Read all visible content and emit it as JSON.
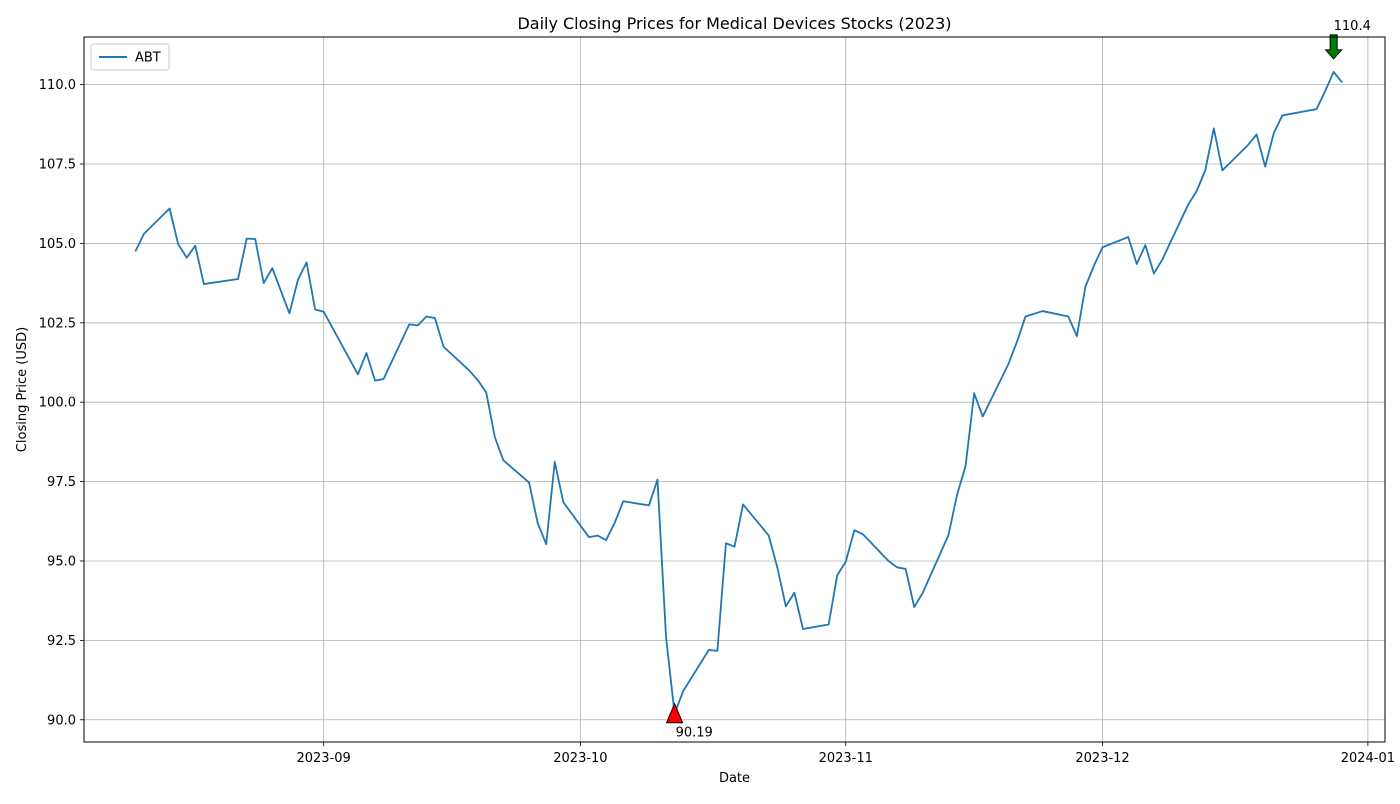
{
  "chart_data": {
    "type": "line",
    "title": "Daily Closing Prices for Medical Devices Stocks (2023)",
    "xlabel": "Date",
    "ylabel": "Closing Price (USD)",
    "xlim": [
      "2023-08-04",
      "2024-01-03"
    ],
    "ylim": [
      89.3,
      111.5
    ],
    "xticks": [
      "2023-09-01",
      "2023-10-01",
      "2023-11-01",
      "2023-12-01",
      "2024-01-01"
    ],
    "xtick_labels": [
      "2023-09",
      "2023-10",
      "2023-11",
      "2023-12",
      "2024-01"
    ],
    "yticks": [
      90.0,
      92.5,
      95.0,
      97.5,
      100.0,
      102.5,
      105.0,
      107.5,
      110.0
    ],
    "ytick_labels": [
      "90.0",
      "92.5",
      "95.0",
      "97.5",
      "100.0",
      "102.5",
      "105.0",
      "107.5",
      "110.0"
    ],
    "grid": true,
    "legend": "top-left",
    "line_color": "#1f77b4",
    "series": [
      {
        "name": "ABT",
        "x": [
          "2023-08-10",
          "2023-08-11",
          "2023-08-14",
          "2023-08-15",
          "2023-08-16",
          "2023-08-17",
          "2023-08-18",
          "2023-08-22",
          "2023-08-23",
          "2023-08-24",
          "2023-08-25",
          "2023-08-26",
          "2023-08-28",
          "2023-08-29",
          "2023-08-30",
          "2023-08-31",
          "2023-09-01",
          "2023-09-05",
          "2023-09-06",
          "2023-09-07",
          "2023-09-08",
          "2023-09-11",
          "2023-09-12",
          "2023-09-13",
          "2023-09-14",
          "2023-09-15",
          "2023-09-18",
          "2023-09-19",
          "2023-09-20",
          "2023-09-21",
          "2023-09-22",
          "2023-09-25",
          "2023-09-26",
          "2023-09-27",
          "2023-09-28",
          "2023-09-29",
          "2023-10-02",
          "2023-10-03",
          "2023-10-04",
          "2023-10-05",
          "2023-10-06",
          "2023-10-09",
          "2023-10-10",
          "2023-10-11",
          "2023-10-12",
          "2023-10-13",
          "2023-10-16",
          "2023-10-17",
          "2023-10-18",
          "2023-10-19",
          "2023-10-20",
          "2023-10-23",
          "2023-10-24",
          "2023-10-25",
          "2023-10-26",
          "2023-10-27",
          "2023-10-30",
          "2023-10-31",
          "2023-11-01",
          "2023-11-02",
          "2023-11-03",
          "2023-11-06",
          "2023-11-07",
          "2023-11-08",
          "2023-11-09",
          "2023-11-10",
          "2023-11-13",
          "2023-11-14",
          "2023-11-15",
          "2023-11-16",
          "2023-11-17",
          "2023-11-20",
          "2023-11-21",
          "2023-11-22",
          "2023-11-24",
          "2023-11-27",
          "2023-11-28",
          "2023-11-29",
          "2023-11-30",
          "2023-12-01",
          "2023-12-04",
          "2023-12-05",
          "2023-12-06",
          "2023-12-07",
          "2023-12-08",
          "2023-12-11",
          "2023-12-12",
          "2023-12-13",
          "2023-12-14",
          "2023-12-15",
          "2023-12-18",
          "2023-12-19",
          "2023-12-20",
          "2023-12-21",
          "2023-12-22",
          "2023-12-26",
          "2023-12-27",
          "2023-12-28",
          "2023-12-29"
        ],
        "values": [
          104.75,
          105.3,
          106.1,
          104.98,
          104.55,
          104.93,
          103.72,
          103.88,
          105.15,
          105.14,
          103.75,
          104.22,
          102.8,
          103.86,
          104.4,
          102.92,
          102.85,
          100.88,
          101.55,
          100.68,
          100.73,
          102.45,
          102.42,
          102.7,
          102.65,
          101.75,
          101.0,
          100.7,
          100.3,
          98.9,
          98.17,
          97.47,
          96.2,
          95.53,
          98.12,
          96.85,
          95.75,
          95.8,
          95.66,
          96.2,
          96.88,
          96.75,
          97.56,
          92.6,
          90.19,
          90.9,
          92.2,
          92.17,
          95.56,
          95.45,
          96.78,
          95.8,
          94.8,
          93.57,
          94.0,
          92.86,
          93.0,
          94.55,
          94.98,
          95.97,
          95.84,
          95.0,
          94.8,
          94.75,
          93.55,
          94.0,
          95.82,
          97.08,
          98.0,
          100.28,
          99.55,
          101.2,
          101.9,
          102.7,
          102.87,
          102.7,
          102.08,
          103.64,
          104.3,
          104.88,
          105.2,
          104.35,
          104.95,
          104.05,
          104.5,
          106.22,
          106.65,
          107.3,
          108.62,
          107.3,
          108.1,
          108.43,
          107.42,
          108.47,
          109.03,
          109.23,
          109.79,
          110.4,
          110.07
        ]
      }
    ],
    "annotations": [
      {
        "text": "110.4",
        "x": "2023-12-28",
        "y": 110.4,
        "marker": "down-arrow",
        "color": "#008000"
      },
      {
        "text": "90.19",
        "x": "2023-10-12",
        "y": 90.19,
        "marker": "up-triangle",
        "color": "#ff0000"
      }
    ]
  }
}
